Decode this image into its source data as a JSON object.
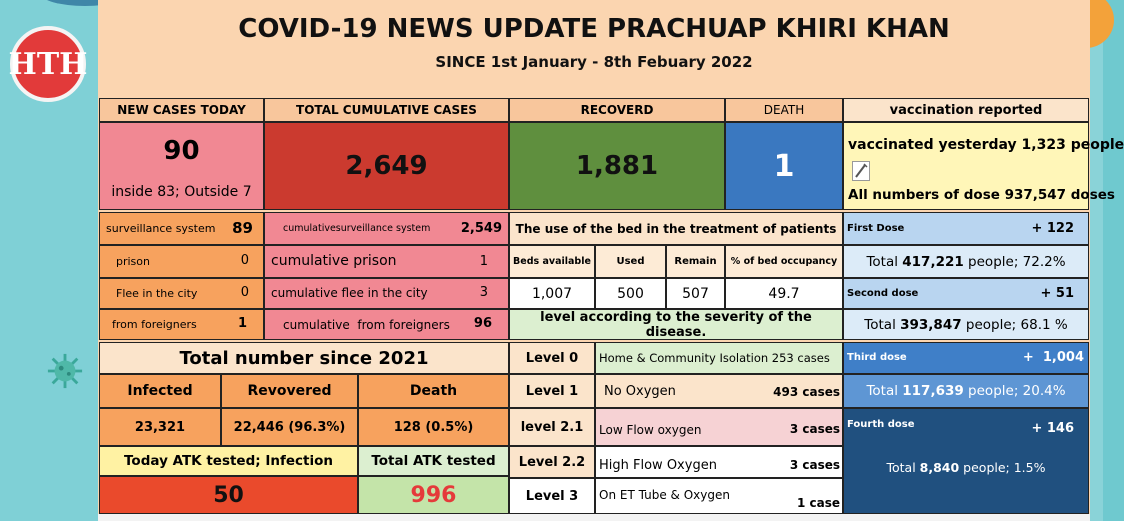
{
  "colors": {
    "red": "#e4473e",
    "pink": "#f18893",
    "green": "#5f8f3e",
    "blue": "#3a78c0"
  },
  "brand": {
    "logo_text": "HTH"
  },
  "header": {
    "title": "COVID-19 NEWS UPDATE PRACHUAP KHIRI KHAN",
    "subtitle": "SINCE 1st January - 8th Febuary 2022"
  },
  "summary": {
    "new_cases_label": "NEW CASES TODAY",
    "total_cumulative_label": "TOTAL CUMULATIVE CASES",
    "recovered_label": "RECOVERD",
    "death_label": "DEATH",
    "vaccination_label": "vaccination reported",
    "new_cases": "90",
    "new_cases_detail": "inside 83; Outside 7",
    "total_cumulative": "2,649",
    "recovered": "1,881",
    "death": "1",
    "vaccinated_yesterday": "vaccinated yesterday 1,323 people",
    "all_doses": "All numbers of dose 937,547 doses"
  },
  "breakdown": {
    "surveillance": {
      "label": "surveillance system",
      "value": "89"
    },
    "prison": {
      "label": "prison",
      "value": "0"
    },
    "flee": {
      "label": "Flee in the city",
      "value": "0"
    },
    "foreigners": {
      "label": "from foreigners",
      "value": "1"
    },
    "cum_surveillance": {
      "label": "cumulativesurveillance system",
      "value": "2,549"
    },
    "cum_prison": {
      "label": "cumulative prison",
      "value": "1"
    },
    "cum_flee": {
      "label": "cumulative flee in the city",
      "value": "3"
    },
    "cum_foreigners": {
      "label": "cumulative  from foreigners",
      "value": "96"
    }
  },
  "beds": {
    "title": "The use of the bed in the treatment of patients",
    "headers": [
      "Beds available",
      "Used",
      "Remain",
      "% of bed occupancy"
    ],
    "values": [
      "1,007",
      "500",
      "507",
      "49.7"
    ]
  },
  "severity": {
    "title": "level according to the severity of the disease.",
    "levels": [
      {
        "level": "Level 0",
        "desc": "Home & Community Isolation 253 cases",
        "count": ""
      },
      {
        "level": "Level 1",
        "desc": "No Oxygen",
        "count": "493 cases"
      },
      {
        "level": "level 2.1",
        "desc": "Low Flow oxygen",
        "count": "3 cases"
      },
      {
        "level": "Level 2.2",
        "desc": "High Flow Oxygen",
        "count": "3 cases"
      },
      {
        "level": "Level 3",
        "desc": "On ET Tube & Oxygen",
        "count": "1 case"
      }
    ]
  },
  "since2021": {
    "title": "Total number since 2021",
    "headers": [
      "Infected",
      "Revovered",
      "Death"
    ],
    "values": [
      "23,321",
      "22,446 (96.3%)",
      "128 (0.5%)"
    ]
  },
  "atk": {
    "today_label": "Today ATK tested; Infection",
    "total_label": "Total ATK tested",
    "today_value": "50",
    "total_value": "996"
  },
  "vaccine": {
    "first": {
      "label": "First Dose",
      "delta": "+ 122",
      "total_prefix": "Total ",
      "total_value": "417,221",
      "total_suffix": " people; 72.2%"
    },
    "second": {
      "label": "Second dose",
      "delta": "+ 51",
      "total_prefix": "Total ",
      "total_value": "393,847",
      "total_suffix": " people; 68.1 %"
    },
    "third": {
      "label": "Third dose",
      "delta": "+  1,004",
      "total_prefix": "Total ",
      "total_value": "117,639",
      "total_suffix": " people; 20.4%"
    },
    "fourth": {
      "label": "Fourth dose",
      "delta": "+ 146",
      "total_prefix": "Total ",
      "total_value": "8,840",
      "total_suffix": " people; 1.5%"
    }
  }
}
